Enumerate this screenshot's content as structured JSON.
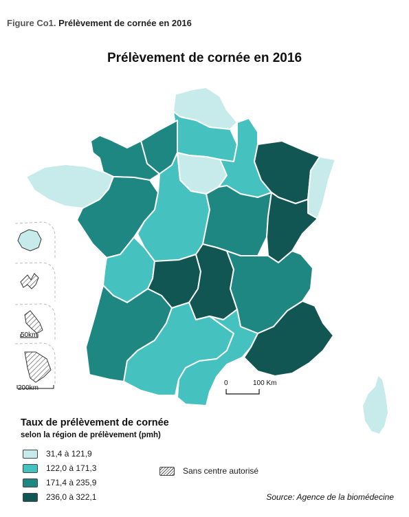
{
  "caption": {
    "label": "Figure Co1.",
    "text": "Prélèvement de cornée en 2016"
  },
  "title": "Prélèvement de cornée en 2016",
  "colors": {
    "c1": "#c7eaea",
    "c2": "#45c1bf",
    "c3": "#1f8782",
    "c4": "#125654",
    "border": "#ffffff"
  },
  "legend": {
    "title": "Taux de prélèvement de cornée",
    "subtitle": "selon la région de prélèvement (pmh)",
    "classes": [
      {
        "label": "31,4 à 121,9",
        "color": "#c7eaea"
      },
      {
        "label": "122,0 à 171,3",
        "color": "#45c1bf"
      },
      {
        "label": "171,4 à 235,9",
        "color": "#1f8782"
      },
      {
        "label": "236,0 à 322,1",
        "color": "#125654"
      }
    ],
    "hatch_label": "Sans centre autorisé"
  },
  "scalebar": {
    "start": "0",
    "end": "100 Km"
  },
  "insets": [
    {
      "name": "reunion",
      "scale": ""
    },
    {
      "name": "guadeloupe",
      "scale": ""
    },
    {
      "name": "martinique",
      "scale": "50km"
    },
    {
      "name": "guyane",
      "scale": "200km"
    }
  ],
  "source": "Source: Agence de la biomédecine"
}
